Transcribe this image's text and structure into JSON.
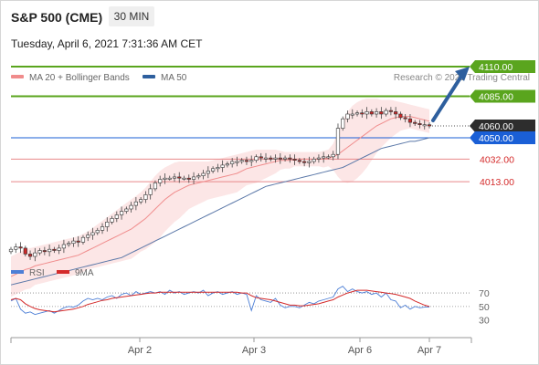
{
  "header": {
    "instrument": "S&P 500 (CME)",
    "timeframe": "30 MIN",
    "datetime": "Tuesday, April 6, 2021 7:31:36 AM CET"
  },
  "legend": {
    "bollinger": {
      "label": "MA 20 + Bollinger Bands",
      "color": "#f08c8c"
    },
    "ma50": {
      "label": "MA 50",
      "color": "#2e5f9e"
    },
    "credit": "Research © 2021 Trading Central"
  },
  "colors": {
    "resistance": "#5aa51e",
    "pivot": "#1a5fd6",
    "support": "#d42a2a",
    "current": "#2d2d2d",
    "arrow": "#2e5f9e",
    "candle_up": "#ffffff",
    "candle_down": "#cc2a2a",
    "rsi": "#4d7fd6",
    "rsi_ma": "#d42a2a"
  },
  "chart_data": [
    {
      "type": "candlestick",
      "title": "S&P 500 (CME)",
      "x_tick_labels": [
        "Apr 2",
        "Apr 3",
        "Apr 6",
        "Apr 7"
      ],
      "price_levels": {
        "resistances": [
          4110.0,
          4085.0
        ],
        "pivot": 4050.0,
        "supports": [
          4032.0,
          4013.0
        ],
        "last": 4060.0
      },
      "level_labels": [
        "4110.00",
        "4085.00",
        "4060.00",
        "4050.00",
        "4032.00",
        "4013.00"
      ],
      "ylim": [
        3920,
        4120
      ],
      "close": [
        3956,
        3958,
        3957,
        3952,
        3950,
        3953,
        3955,
        3954,
        3956,
        3955,
        3957,
        3960,
        3961,
        3963,
        3962,
        3966,
        3968,
        3970,
        3972,
        3975,
        3979,
        3982,
        3985,
        3988,
        3990,
        3993,
        3996,
        3998,
        4002,
        4007,
        4012,
        4015,
        4016,
        4016,
        4017,
        4016,
        4016,
        4015,
        4017,
        4018,
        4020,
        4022,
        4024,
        4025,
        4027,
        4028,
        4030,
        4030,
        4031,
        4030,
        4031,
        4034,
        4033,
        4033,
        4032,
        4033,
        4032,
        4033,
        4032,
        4031,
        4030,
        4029,
        4030,
        4032,
        4033,
        4034,
        4034,
        4036,
        4058,
        4066,
        4070,
        4070,
        4071,
        4070,
        4072,
        4070,
        4072,
        4070,
        4073,
        4072,
        4070,
        4067,
        4066,
        4063,
        4062,
        4061,
        4061,
        4060
      ],
      "ma20": [
        3933,
        3935,
        3937,
        3939,
        3940,
        3942,
        3943,
        3944,
        3945,
        3946,
        3947,
        3948,
        3949,
        3950,
        3951,
        3953,
        3955,
        3957,
        3959,
        3961,
        3963,
        3965,
        3967,
        3969,
        3971,
        3973,
        3976,
        3979,
        3982,
        3986,
        3990,
        3994,
        3998,
        4001,
        4004,
        4006,
        4008,
        4010,
        4011,
        4012,
        4013,
        4014,
        4015,
        4016,
        4017,
        4018,
        4019,
        4020,
        4022,
        4024,
        4025,
        4026,
        4027,
        4028,
        4029,
        4030,
        4031,
        4031,
        4031,
        4032,
        4032,
        4032,
        4032,
        4032,
        4032,
        4032,
        4033,
        4034,
        4036,
        4039,
        4042,
        4045,
        4048,
        4051,
        4054,
        4057,
        4060,
        4062,
        4064,
        4066,
        4067,
        4068,
        4068,
        4068,
        4067,
        4066,
        4065,
        4064
      ],
      "bollinger_upper": [
        3950,
        3952,
        3954,
        3956,
        3957,
        3958,
        3959,
        3960,
        3961,
        3962,
        3963,
        3964,
        3965,
        3966,
        3967,
        3969,
        3971,
        3974,
        3977,
        3980,
        3983,
        3986,
        3989,
        3992,
        3995,
        3998,
        4001,
        4004,
        4008,
        4013,
        4018,
        4022,
        4025,
        4027,
        4029,
        4030,
        4030,
        4030,
        4030,
        4030,
        4030,
        4030,
        4031,
        4032,
        4033,
        4034,
        4035,
        4036,
        4037,
        4038,
        4039,
        4040,
        4040,
        4040,
        4040,
        4040,
        4039,
        4038,
        4038,
        4038,
        4038,
        4038,
        4038,
        4038,
        4038,
        4039,
        4040,
        4045,
        4055,
        4065,
        4072,
        4077,
        4080,
        4082,
        4083,
        4083,
        4083,
        4082,
        4082,
        4082,
        4081,
        4080,
        4079,
        4078,
        4077,
        4076,
        4075,
        4074
      ],
      "bollinger_lower": [
        3916,
        3918,
        3920,
        3922,
        3923,
        3926,
        3927,
        3928,
        3929,
        3930,
        3931,
        3932,
        3933,
        3934,
        3935,
        3937,
        3939,
        3940,
        3941,
        3942,
        3943,
        3944,
        3945,
        3946,
        3947,
        3948,
        3951,
        3954,
        3956,
        3959,
        3962,
        3966,
        3971,
        3975,
        3979,
        3982,
        3986,
        3990,
        3992,
        3994,
        3996,
        3998,
        3999,
        4000,
        4001,
        4002,
        4003,
        4004,
        4007,
        4010,
        4011,
        4012,
        4014,
        4016,
        4018,
        4020,
        4023,
        4024,
        4024,
        4026,
        4026,
        4026,
        4026,
        4026,
        4026,
        4025,
        4026,
        4023,
        4017,
        4013,
        4012,
        4013,
        4016,
        4020,
        4025,
        4031,
        4037,
        4042,
        4046,
        4050,
        4053,
        4056,
        4057,
        4058,
        4057,
        4056,
        4055,
        4054
      ],
      "ma50": [
        3926,
        3927,
        3928,
        3929,
        3930,
        3931,
        3932,
        3933,
        3934,
        3935,
        3936,
        3937,
        3938,
        3939,
        3940,
        3941,
        3942,
        3943,
        3944,
        3945,
        3946,
        3947,
        3948,
        3949,
        3951,
        3953,
        3955,
        3957,
        3959,
        3961,
        3963,
        3965,
        3967,
        3969,
        3971,
        3973,
        3975,
        3977,
        3979,
        3981,
        3983,
        3985,
        3987,
        3989,
        3991,
        3993,
        3995,
        3997,
        3999,
        4001,
        4003,
        4005,
        4007,
        4009,
        4010,
        4011,
        4012,
        4013,
        4014,
        4015,
        4016,
        4017,
        4018,
        4019,
        4020,
        4021,
        4022,
        4023,
        4024,
        4025,
        4027,
        4029,
        4031,
        4033,
        4035,
        4037,
        4039,
        4041,
        4042,
        4043,
        4044,
        4045,
        4046,
        4047,
        4047,
        4048,
        4049,
        4050
      ],
      "forecast_arrow": {
        "from": 4060,
        "to": 4110
      }
    },
    {
      "type": "line",
      "title": "RSI",
      "series": [
        {
          "name": "RSI",
          "values": [
            58,
            62,
            46,
            40,
            42,
            38,
            40,
            42,
            44,
            40,
            44,
            48,
            50,
            49,
            52,
            58,
            62,
            60,
            62,
            60,
            64,
            66,
            62,
            68,
            70,
            66,
            72,
            68,
            70,
            72,
            70,
            72,
            68,
            74,
            70,
            72,
            68,
            70,
            72,
            70,
            74,
            66,
            70,
            72,
            68,
            70,
            72,
            68,
            70,
            68,
            44,
            66,
            60,
            58,
            56,
            62,
            52,
            48,
            50,
            50,
            48,
            52,
            56,
            54,
            58,
            60,
            62,
            64,
            76,
            80,
            72,
            76,
            72,
            70,
            72,
            68,
            70,
            64,
            70,
            60,
            58,
            48,
            52,
            46,
            50,
            48,
            49,
            49
          ]
        },
        {
          "name": "9MA",
          "values": [
            60,
            62,
            60,
            54,
            50,
            47,
            45,
            44,
            43,
            42,
            43,
            44,
            45,
            46,
            48,
            50,
            53,
            55,
            57,
            59,
            60,
            62,
            63,
            64,
            65,
            66,
            67,
            68,
            69,
            70,
            70,
            71,
            71,
            71,
            71,
            71,
            71,
            71,
            71,
            71,
            71,
            71,
            71,
            71,
            71,
            71,
            71,
            71,
            70,
            70,
            66,
            63,
            62,
            61,
            60,
            58,
            56,
            54,
            52,
            52,
            51,
            51,
            52,
            53,
            54,
            56,
            58,
            60,
            64,
            67,
            70,
            72,
            74,
            74,
            74,
            73,
            72,
            71,
            70,
            69,
            68,
            66,
            64,
            62,
            58,
            55,
            52,
            50
          ]
        }
      ],
      "ylim": [
        20,
        85
      ],
      "y_ticks": [
        "70",
        "50",
        "30"
      ]
    }
  ]
}
